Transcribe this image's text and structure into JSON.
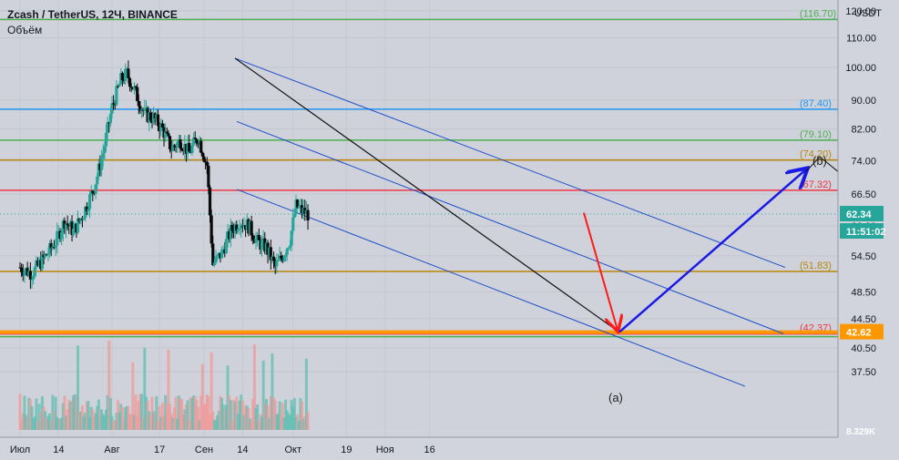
{
  "header": {
    "title": "Zcash / TetherUS, 12Ч, BINANCE",
    "volume_label": "Объём",
    "currency": "USDT"
  },
  "colors": {
    "background": "#d1d4dc",
    "up_candle": "#26a69a",
    "down_candle": "#0b0b0b",
    "level_green": "#4caf50",
    "level_blue": "#2196f3",
    "level_gold": "#b8860b",
    "level_red": "#f23645",
    "level_orange": "#ff9800",
    "channel": "#1e4fc8",
    "arrow_down": "#ff1a1a",
    "arrow_up": "#1a1ae6",
    "vol_up": "#5fbfb3",
    "vol_down": "#ef9a9a"
  },
  "chart_data": {
    "type": "candlestick",
    "title": "Zcash / TetherUS, 12Ч, BINANCE",
    "y_axis": {
      "scale": "log",
      "range": [
        35,
        125
      ],
      "ticks": [
        "37.50",
        "40.50",
        "44.50",
        "48.50",
        "54.50",
        "60.00",
        "66.50",
        "74.00",
        "82.00",
        "90.00",
        "100.00",
        "110.00",
        "120.00"
      ]
    },
    "x_axis": {
      "ticks": [
        "Июл",
        "14",
        "Авг",
        "17",
        "Сен",
        "14",
        "Окт",
        "19",
        "Ноя",
        "16"
      ]
    },
    "horizontal_levels": [
      {
        "value": 116.7,
        "label": "(116.70)",
        "color": "#4caf50"
      },
      {
        "value": 87.4,
        "label": "(87.40)",
        "color": "#2196f3"
      },
      {
        "value": 79.1,
        "label": "(79.10)",
        "color": "#4caf50"
      },
      {
        "value": 74.2,
        "label": "(74.20)",
        "color": "#b8860b"
      },
      {
        "value": 67.32,
        "label": "(67.32)",
        "color": "#f23645"
      },
      {
        "value": 51.83,
        "label": "(51.83)",
        "color": "#b8860b"
      },
      {
        "value": 42.37,
        "label": "(42.37)",
        "color": "#f23645"
      }
    ],
    "last_price": {
      "value": "62.34",
      "countdown": "11:51:02"
    },
    "target_price": {
      "value": "42.62"
    },
    "volume_last": "8.329K",
    "annotations": [
      "(a)",
      "(b)"
    ],
    "price_path": [
      {
        "date": "2020-07-01",
        "price": 52.5
      },
      {
        "date": "2020-07-05",
        "price": 51.5
      },
      {
        "date": "2020-07-09",
        "price": 54
      },
      {
        "date": "2020-07-13",
        "price": 57
      },
      {
        "date": "2020-07-16",
        "price": 61
      },
      {
        "date": "2020-07-19",
        "price": 59
      },
      {
        "date": "2020-07-22",
        "price": 62
      },
      {
        "date": "2020-07-26",
        "price": 68
      },
      {
        "date": "2020-07-29",
        "price": 76
      },
      {
        "date": "2020-08-01",
        "price": 88
      },
      {
        "date": "2020-08-04",
        "price": 96
      },
      {
        "date": "2020-08-06",
        "price": 98
      },
      {
        "date": "2020-08-09",
        "price": 92
      },
      {
        "date": "2020-08-12",
        "price": 86
      },
      {
        "date": "2020-08-15",
        "price": 85
      },
      {
        "date": "2020-08-18",
        "price": 82
      },
      {
        "date": "2020-08-21",
        "price": 77
      },
      {
        "date": "2020-08-24",
        "price": 79
      },
      {
        "date": "2020-08-27",
        "price": 76
      },
      {
        "date": "2020-08-30",
        "price": 80
      },
      {
        "date": "2020-09-02",
        "price": 73
      },
      {
        "date": "2020-09-04",
        "price": 53
      },
      {
        "date": "2020-09-07",
        "price": 55
      },
      {
        "date": "2020-09-10",
        "price": 59
      },
      {
        "date": "2020-09-13",
        "price": 61
      },
      {
        "date": "2020-09-16",
        "price": 60
      },
      {
        "date": "2020-09-19",
        "price": 57
      },
      {
        "date": "2020-09-22",
        "price": 56
      },
      {
        "date": "2020-09-25",
        "price": 52.5
      },
      {
        "date": "2020-09-28",
        "price": 55
      },
      {
        "date": "2020-09-30",
        "price": 57.5
      },
      {
        "date": "2020-10-02",
        "price": 64
      },
      {
        "date": "2020-10-04",
        "price": 63
      },
      {
        "date": "2020-10-06",
        "price": 62.34
      }
    ]
  }
}
